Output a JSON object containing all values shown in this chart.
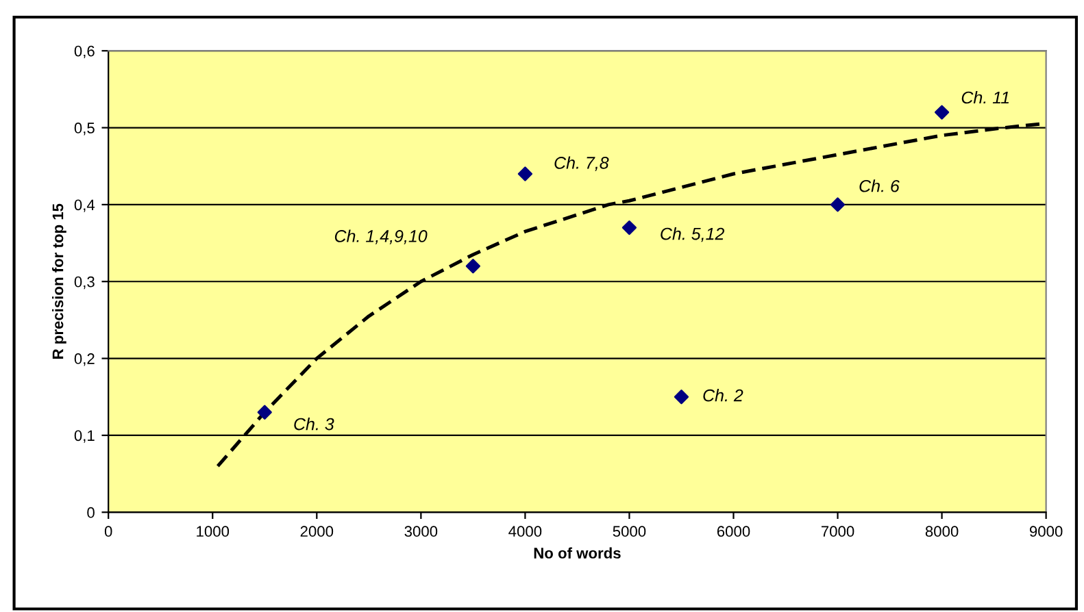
{
  "chart_data": {
    "type": "scatter",
    "xlabel": "No of words",
    "ylabel": "R precision for top 15",
    "series": [
      {
        "color": "#000080",
        "marker": "diamond",
        "x": [
          1500,
          3500,
          4000,
          5000,
          5500,
          7000,
          8000
        ],
        "values": [
          0.13,
          0.32,
          0.44,
          0.37,
          0.15,
          0.4,
          0.52
        ]
      },
      {
        "type": "line",
        "color": "#000000",
        "line_style": "dashed",
        "marker": "none",
        "x": [
          1050,
          1500,
          2000,
          2500,
          3000,
          3500,
          4000,
          4800,
          5000,
          6000,
          7000,
          8000,
          8600,
          8950
        ],
        "values": [
          0.06,
          0.13,
          0.2,
          0.255,
          0.3,
          0.335,
          0.365,
          0.4,
          0.405,
          0.44,
          0.465,
          0.49,
          0.5,
          0.505
        ]
      }
    ],
    "annotations": [
      {
        "text": "Ch. 3",
        "x": 1500,
        "y": 0.13
      },
      {
        "text": "Ch. 1,4,9,10",
        "x": 3500,
        "y": 0.32
      },
      {
        "text": "Ch. 7,8",
        "x": 4000,
        "y": 0.44
      },
      {
        "text": "Ch. 5,12",
        "x": 5000,
        "y": 0.37
      },
      {
        "text": "Ch. 2",
        "x": 5500,
        "y": 0.15
      },
      {
        "text": "Ch. 6",
        "x": 7000,
        "y": 0.4
      },
      {
        "text": "Ch. 11",
        "x": 8000,
        "y": 0.52
      }
    ],
    "xlim": [
      0,
      9000
    ],
    "xticks": [
      0,
      1000,
      2000,
      3000,
      4000,
      5000,
      6000,
      7000,
      8000,
      9000
    ],
    "ylim": [
      0,
      0.6
    ],
    "yticks": [
      {
        "value": 0,
        "label": "0"
      },
      {
        "value": 0.1,
        "label": "0,1"
      },
      {
        "value": 0.2,
        "label": "0,2"
      },
      {
        "value": 0.3,
        "label": "0,3"
      },
      {
        "value": 0.4,
        "label": "0,4"
      },
      {
        "value": 0.5,
        "label": "0,5"
      },
      {
        "value": 0.6,
        "label": "0,6"
      }
    ],
    "grid": "y",
    "legend": false
  }
}
